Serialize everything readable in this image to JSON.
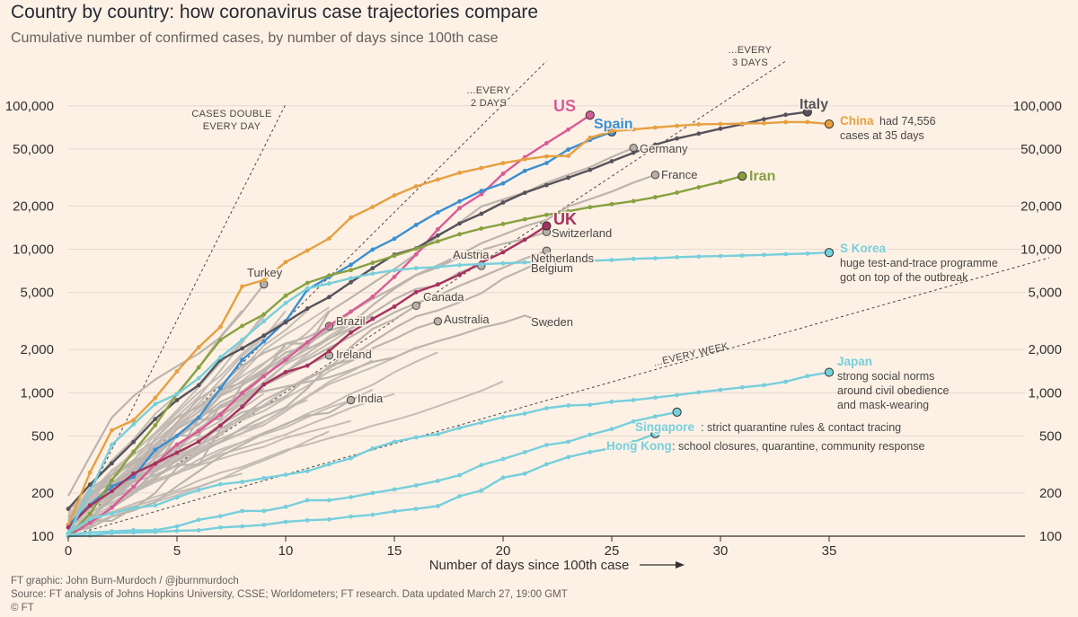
{
  "title": "Country by country: how coronavirus case trajectories compare",
  "subtitle": "Cumulative number of confirmed cases, by number of days since 100th case",
  "footer": {
    "credit": "FT graphic: John Burn-Murdoch / @jburnmurdoch",
    "source": "Source: FT analysis of Johns Hopkins University, CSSE; Worldometers; FT research. Data updated March 27, 19:00 GMT",
    "copyright": "© FT"
  },
  "chart_data": {
    "type": "line",
    "xlabel": "Number of days since 100th case",
    "ylabel": "",
    "y_scale": "log",
    "xlim": [
      0,
      44
    ],
    "ylim": [
      100,
      150000
    ],
    "x_ticks": [
      0,
      5,
      10,
      15,
      20,
      25,
      30,
      35
    ],
    "y_ticks": [
      100,
      200,
      500,
      1000,
      2000,
      5000,
      10000,
      20000,
      50000,
      100000
    ],
    "y_tick_labels": [
      "100",
      "200",
      "500",
      "1,000",
      "2,000",
      "5,000",
      "10,000",
      "20,000",
      "50,000",
      "100,000"
    ],
    "guides": [
      {
        "label": [
          "CASES DOUBLE",
          "EVERY DAY"
        ],
        "doubling_days": 1
      },
      {
        "label": [
          "...EVERY",
          "2 DAYS"
        ],
        "doubling_days": 2
      },
      {
        "label": [
          "...EVERY",
          "3 DAYS"
        ],
        "doubling_days": 3
      },
      {
        "label": [
          "...EVERY WEEK"
        ],
        "doubling_days": 7
      }
    ],
    "highlighted": [
      {
        "name": "US",
        "color": "#d85c96",
        "label_bold": true,
        "values": [
          100,
          124,
          158,
          221,
          319,
          435,
          541,
          704,
          994,
          1301,
          1697,
          2247,
          2943,
          3680,
          4663,
          6411,
          9197,
          13779,
          19367,
          24192,
          33592,
          43781,
          54856,
          68211,
          85996
        ]
      },
      {
        "name": "Spain",
        "color": "#3a8fd1",
        "label_bold": true,
        "values": [
          120,
          165,
          222,
          259,
          400,
          500,
          673,
          1073,
          1695,
          2277,
          3146,
          5232,
          6391,
          7798,
          9942,
          11826,
          14769,
          18077,
          21571,
          25496,
          28768,
          35136,
          39885,
          49515,
          57786,
          65719
        ]
      },
      {
        "name": "Italy",
        "color": "#57535a",
        "label_bold": true,
        "values": [
          155,
          229,
          322,
          453,
          655,
          888,
          1128,
          1694,
          2036,
          2502,
          3089,
          3858,
          4636,
          5883,
          7375,
          9172,
          10149,
          12462,
          15113,
          17660,
          21157,
          24747,
          27980,
          31506,
          35713,
          41035,
          47021,
          53578,
          59138,
          63927,
          69176,
          74386,
          80589,
          86498,
          90500
        ]
      },
      {
        "name": "China",
        "color": "#e6a040",
        "note": [
          "had 74,556",
          "cases at 35 days"
        ],
        "values": [
          120,
          278,
          548,
          643,
          920,
          1406,
          2075,
          2877,
          5509,
          6087,
          8141,
          9802,
          11891,
          16630,
          19716,
          23707,
          27440,
          30587,
          34110,
          36814,
          39829,
          42354,
          44386,
          44759,
          59895,
          66358,
          68413,
          70513,
          72434,
          74211,
          74619,
          75077,
          75550,
          77001,
          77022,
          74556
        ]
      },
      {
        "name": "Iran",
        "color": "#87a13f",
        "label_bold": true,
        "values": [
          100,
          143,
          245,
          388,
          593,
          978,
          1501,
          2336,
          2922,
          3513,
          4747,
          5823,
          6566,
          7161,
          8042,
          9000,
          10075,
          11364,
          12729,
          13938,
          14991,
          16169,
          17361,
          18407,
          19644,
          20610,
          21638,
          23049,
          24811,
          27017,
          29406,
          32332
        ]
      },
      {
        "name": "UK",
        "color": "#a5325e",
        "label_bold": true,
        "values": [
          115,
          163,
          206,
          273,
          321,
          382,
          456,
          590,
          798,
          1140,
          1391,
          1543,
          1950,
          2626,
          3269,
          3983,
          5018,
          5683,
          6650,
          8077,
          9529,
          11658,
          14543
        ]
      },
      {
        "name": "S Korea",
        "color": "#77cfdb",
        "label_bold": true,
        "note": [
          "huge test-and-trace programme",
          "got on top of the outbreak"
        ],
        "values": [
          104,
          204,
          433,
          602,
          833,
          977,
          1261,
          1766,
          2337,
          3150,
          4212,
          5328,
          5766,
          6284,
          6767,
          7134,
          7382,
          7513,
          7755,
          7869,
          7979,
          8086,
          8162,
          8236,
          8320,
          8413,
          8565,
          8652,
          8799,
          8897,
          8961,
          9037,
          9137,
          9241,
          9332,
          9478
        ]
      },
      {
        "name": "Japan",
        "color": "#77cfdb",
        "label_bold": true,
        "note": [
          "strong social norms",
          "around civil obedience",
          "and mask-wearing"
        ],
        "values": [
          105,
          132,
          144,
          157,
          164,
          186,
          210,
          230,
          239,
          254,
          268,
          284,
          317,
          349,
          408,
          455,
          488,
          514,
          568,
          620,
          675,
          716,
          780,
          814,
          824,
          865,
          889,
          924,
          963,
          1007,
          1046,
          1089,
          1128,
          1193,
          1307,
          1387
        ]
      },
      {
        "name": "Singapore",
        "color": "#77cfdb",
        "label_bold": true,
        "note": [
          "strict quarantine rules & contact tracing"
        ],
        "values": [
          102,
          106,
          108,
          110,
          110,
          117,
          130,
          138,
          150,
          150,
          160,
          178,
          178,
          187,
          200,
          212,
          226,
          243,
          266,
          313,
          345,
          385,
          432,
          455,
          509,
          558,
          631,
          683,
          732
        ]
      },
      {
        "name": "Hong Kong",
        "color": "#77cfdb",
        "label_bold": true,
        "note": [
          "school closures, quarantine, community response"
        ],
        "values": [
          100,
          101,
          105,
          106,
          107,
          109,
          110,
          115,
          117,
          120,
          126,
          129,
          131,
          137,
          141,
          149,
          155,
          162,
          190,
          208,
          256,
          273,
          317,
          356,
          386,
          410,
          453,
          518
        ]
      }
    ],
    "labelled_grey": [
      {
        "name": "Germany",
        "values": [
          130,
          159,
          196,
          262,
          482,
          670,
          799,
          1040,
          1176,
          1457,
          1908,
          2078,
          3675,
          4585,
          5795,
          7272,
          9257,
          12327,
          15320,
          19848,
          22213,
          24873,
          29056,
          32986,
          37323,
          43938,
          50871
        ]
      },
      {
        "name": "France",
        "values": [
          100,
          130,
          191,
          204,
          285,
          377,
          653,
          949,
          1126,
          1412,
          1784,
          2281,
          2876,
          3661,
          4499,
          5423,
          6633,
          7730,
          9134,
          10995,
          12612,
          14459,
          16018,
          19856,
          22304,
          25233,
          29155,
          32964
        ]
      },
      {
        "name": "Switzerland",
        "values": [
          114,
          214,
          268,
          337,
          374,
          491,
          652,
          652,
          1139,
          1359,
          2200,
          2200,
          2700,
          3028,
          4075,
          5294,
          6575,
          7474,
          8795,
          9877,
          10897,
          11811,
          13187
        ]
      },
      {
        "name": "Austria",
        "values": [
          104,
          131,
          182,
          246,
          302,
          504,
          655,
          860,
          1018,
          1332,
          1646,
          2013,
          2388,
          2814,
          3582,
          4474,
          5283,
          5588,
          6909,
          7657
        ]
      },
      {
        "name": "Netherlands",
        "values": [
          128,
          188,
          265,
          321,
          382,
          503,
          503,
          806,
          962,
          1138,
          1413,
          1705,
          2051,
          2460,
          2994,
          3631,
          4204,
          4749,
          5560,
          6412,
          7431,
          8603,
          9762
        ]
      },
      {
        "name": "Belgium",
        "values": [
          109,
          169,
          200,
          239,
          267,
          314,
          314,
          559,
          689,
          886,
          1058,
          1243,
          1486,
          1795,
          2257,
          2815,
          3401,
          3743,
          4269,
          4937,
          6235,
          7284,
          8562
        ]
      },
      {
        "name": "Canada",
        "values": [
          103,
          117,
          157,
          198,
          252,
          341,
          424,
          598,
          732,
          800,
          943,
          1277,
          1469,
          2088,
          2790,
          3251,
          4042
        ]
      },
      {
        "name": "Australia",
        "values": [
          112,
          127,
          128,
          156,
          200,
          300,
          377,
          453,
          568,
          681,
          791,
          1071,
          1549,
          1682,
          2044,
          2364,
          2810,
          3143
        ]
      },
      {
        "name": "Sweden",
        "values": [
          137,
          161,
          203,
          248,
          355,
          500,
          599,
          814,
          961,
          1022,
          1103,
          1190,
          1279,
          1439,
          1639,
          1763,
          2046,
          2286,
          2526,
          2840,
          3069,
          3447,
          3069
        ]
      },
      {
        "name": "Brazil",
        "values": [
          121,
          200,
          234,
          291,
          428,
          621,
          904,
          1128,
          1546,
          1891,
          2201,
          2433,
          2915
        ]
      },
      {
        "name": "Ireland",
        "values": [
          129,
          169,
          223,
          292,
          366,
          557,
          683,
          785,
          906,
          1125,
          1329,
          1564,
          1819
        ]
      },
      {
        "name": "Turkey",
        "values": [
          191,
          359,
          670,
          947,
          1236,
          1529,
          1872,
          2433,
          3629,
          5698
        ]
      },
      {
        "name": "India",
        "values": [
          107,
          114,
          137,
          151,
          173,
          223,
          283,
          360,
          433,
          519,
          606,
          694,
          724,
          887
        ]
      }
    ],
    "other_grey_count": 30
  }
}
